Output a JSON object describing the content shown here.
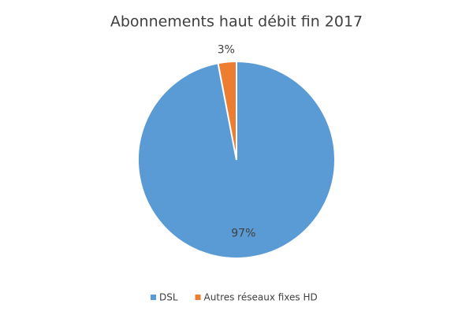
{
  "chart_data": {
    "type": "pie",
    "title": "Abonnements haut débit fin 2017",
    "categories": [
      "DSL",
      "Autres réseaux fixes HD"
    ],
    "values": [
      97,
      3
    ],
    "value_labels": [
      "97%",
      "3%"
    ],
    "colors": [
      "#5b9bd5",
      "#ed7d31"
    ],
    "legend": "bottom"
  }
}
